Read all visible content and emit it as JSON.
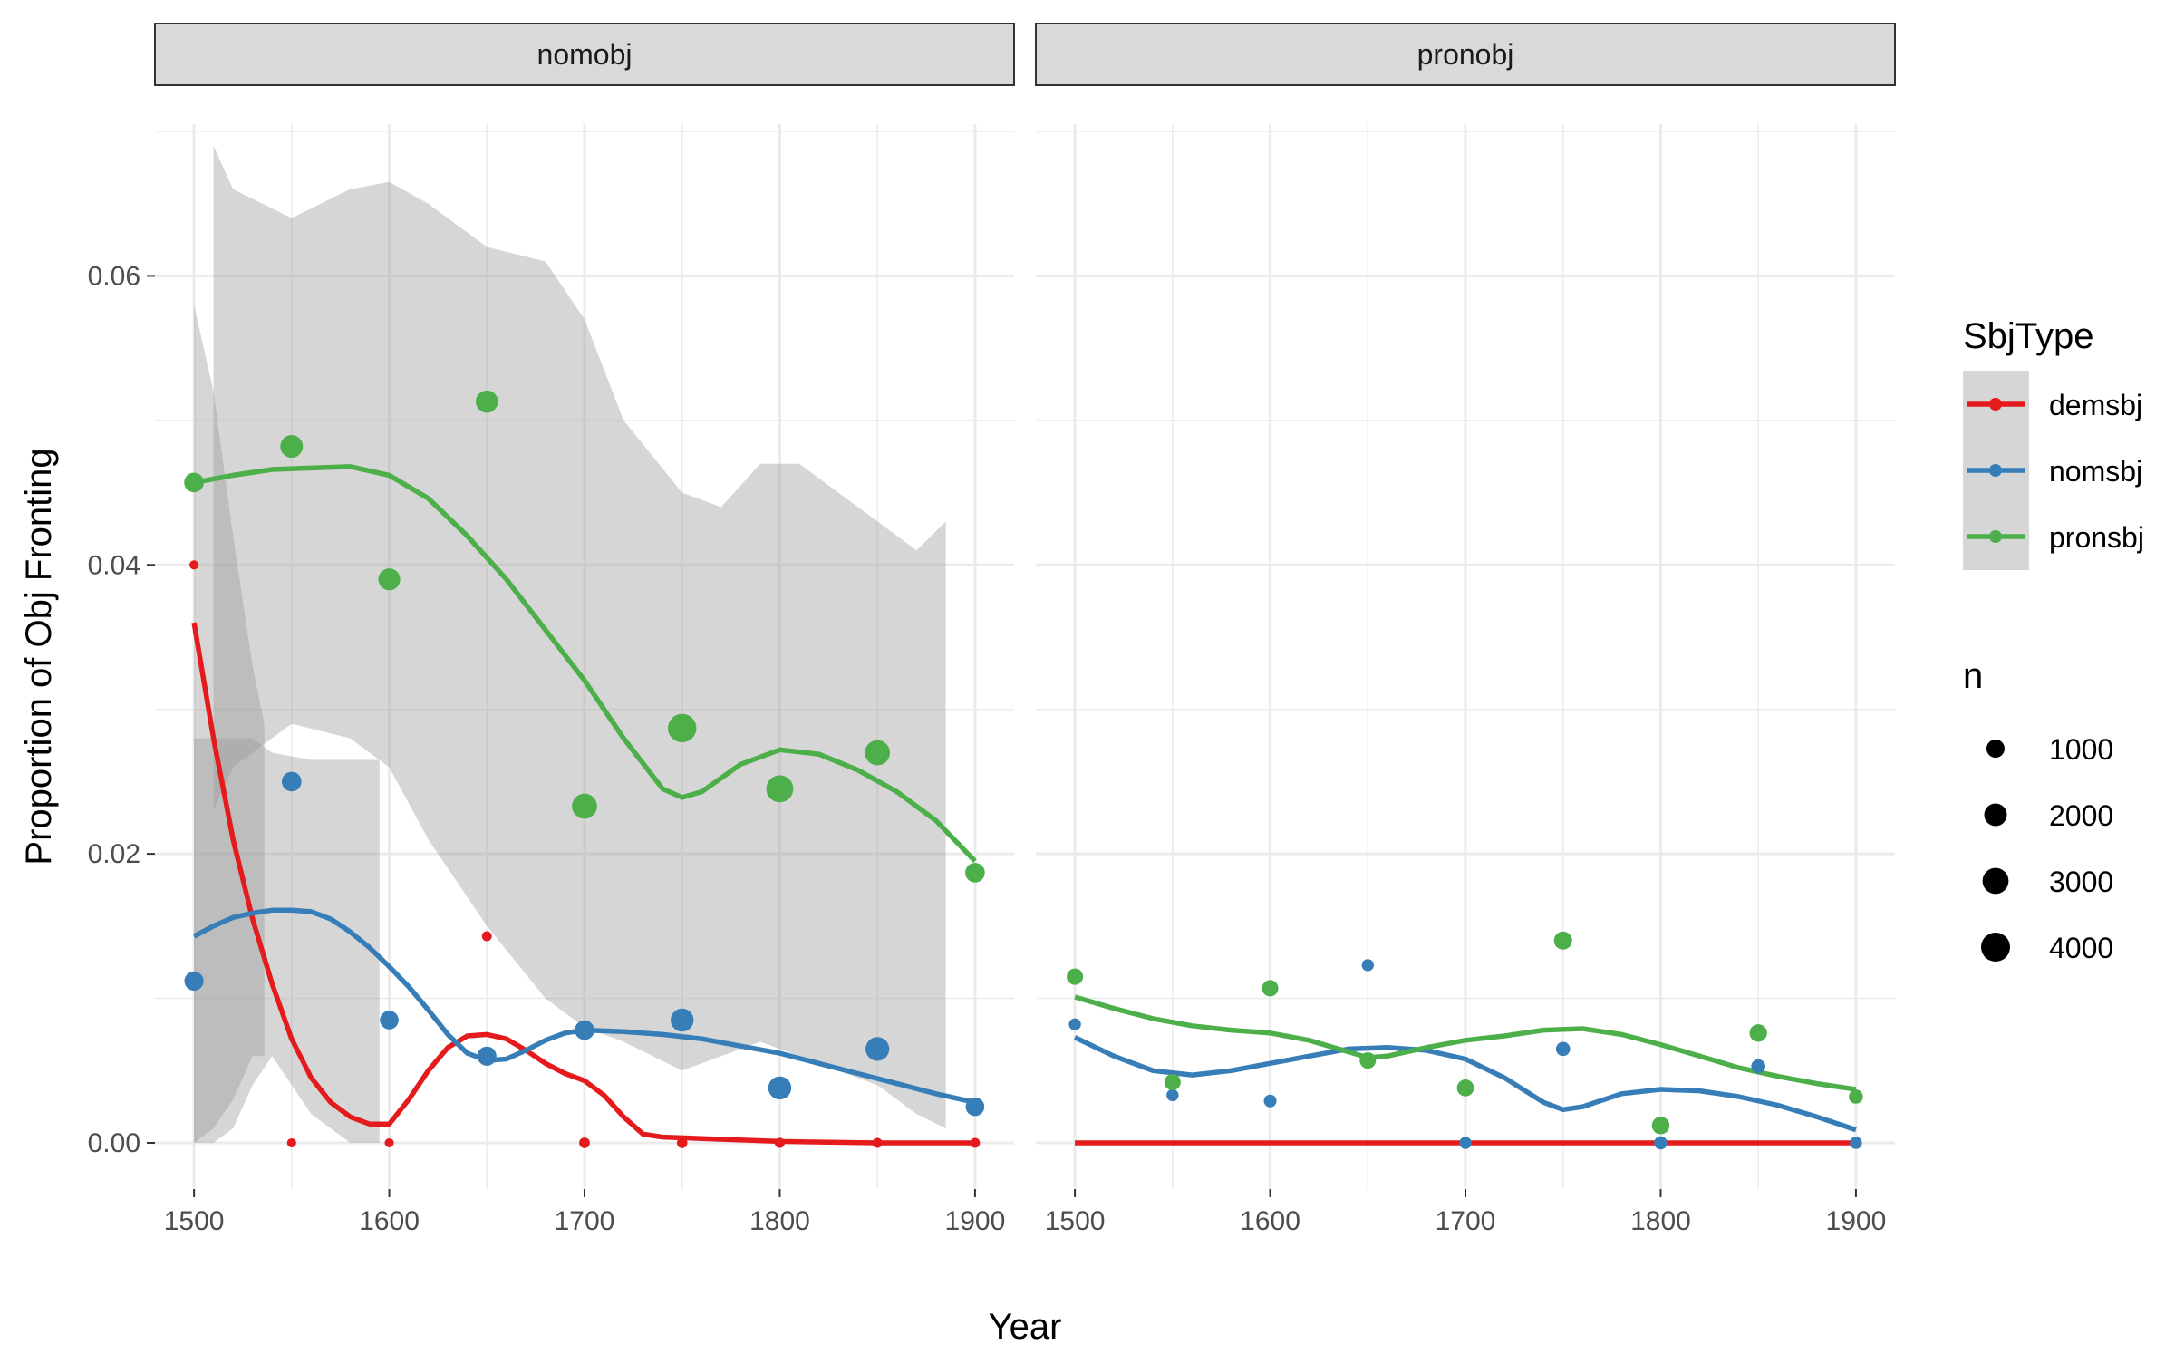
{
  "chart_data": {
    "type": "scatter",
    "xlabel": "Year",
    "ylabel": "Proportion of Obj Fronting",
    "xlim": [
      1480,
      1920
    ],
    "ylim": [
      -0.0032,
      0.0705
    ],
    "x_ticks": [
      1500,
      1600,
      1700,
      1800,
      1900
    ],
    "x_tick_labels": [
      "1500",
      "1600",
      "1700",
      "1800",
      "1900"
    ],
    "y_ticks": [
      0.0,
      0.02,
      0.04,
      0.06
    ],
    "y_tick_labels": [
      "0.00",
      "0.02",
      "0.04",
      "0.06"
    ],
    "grid": true,
    "legend_position": "right",
    "colors": {
      "demsbj": "#e41a1c",
      "nomsbj": "#377eb8",
      "pronsbj": "#4daf4a",
      "ribbon": "#999999",
      "strip_bg": "#d9d9d9",
      "grid": "#ebebeb"
    },
    "color_legend": {
      "title": "SbjType",
      "entries": [
        "demsbj",
        "nomsbj",
        "pronsbj"
      ]
    },
    "size_legend": {
      "title": "n",
      "entries": [
        1000,
        2000,
        3000,
        4000
      ],
      "labels": [
        "1000",
        "2000",
        "3000",
        "4000"
      ]
    },
    "panels": [
      {
        "label": "nomobj",
        "series": [
          {
            "name": "demsbj",
            "points": [
              {
                "x": 1500,
                "y": 0.04,
                "n": 30
              },
              {
                "x": 1550,
                "y": 0.0,
                "n": 30
              },
              {
                "x": 1600,
                "y": 0.0,
                "n": 30
              },
              {
                "x": 1650,
                "y": 0.0143,
                "n": 60
              },
              {
                "x": 1700,
                "y": 0.0,
                "n": 100
              },
              {
                "x": 1750,
                "y": 0.0,
                "n": 90
              },
              {
                "x": 1800,
                "y": 0.0,
                "n": 70
              },
              {
                "x": 1850,
                "y": 0.0,
                "n": 60
              },
              {
                "x": 1900,
                "y": 0.0,
                "n": 60
              }
            ],
            "smooth": [
              [
                1500,
                0.036
              ],
              [
                1510,
                0.028
              ],
              [
                1520,
                0.021
              ],
              [
                1530,
                0.0155
              ],
              [
                1540,
                0.011
              ],
              [
                1550,
                0.0072
              ],
              [
                1560,
                0.0045
              ],
              [
                1570,
                0.0028
              ],
              [
                1580,
                0.0018
              ],
              [
                1590,
                0.0013
              ],
              [
                1600,
                0.0013
              ],
              [
                1610,
                0.003
              ],
              [
                1620,
                0.005
              ],
              [
                1630,
                0.0066
              ],
              [
                1640,
                0.0074
              ],
              [
                1650,
                0.0075
              ],
              [
                1660,
                0.0072
              ],
              [
                1670,
                0.0064
              ],
              [
                1680,
                0.0055
              ],
              [
                1690,
                0.0048
              ],
              [
                1700,
                0.0043
              ],
              [
                1710,
                0.0033
              ],
              [
                1720,
                0.0018
              ],
              [
                1730,
                0.0006
              ],
              [
                1740,
                0.0004
              ],
              [
                1760,
                0.0003
              ],
              [
                1800,
                0.0001
              ],
              [
                1850,
                0.0
              ],
              [
                1900,
                0.0
              ]
            ],
            "ribbon": {
              "x": [
                1500,
                1510,
                1520,
                1530,
                1536
              ],
              "lower": [
                0.0,
                0.001,
                0.003,
                0.006,
                0.006
              ],
              "upper": [
                0.058,
                0.052,
                0.042,
                0.033,
                0.029
              ]
            }
          },
          {
            "name": "nomsbj",
            "points": [
              {
                "x": 1500,
                "y": 0.0112,
                "n": 1200
              },
              {
                "x": 1550,
                "y": 0.025,
                "n": 1300
              },
              {
                "x": 1600,
                "y": 0.0085,
                "n": 1100
              },
              {
                "x": 1650,
                "y": 0.006,
                "n": 1200
              },
              {
                "x": 1700,
                "y": 0.0078,
                "n": 1300
              },
              {
                "x": 1750,
                "y": 0.0085,
                "n": 2100
              },
              {
                "x": 1800,
                "y": 0.0038,
                "n": 2100
              },
              {
                "x": 1850,
                "y": 0.0065,
                "n": 2300
              },
              {
                "x": 1900,
                "y": 0.0025,
                "n": 1100
              }
            ],
            "smooth": [
              [
                1500,
                0.0143
              ],
              [
                1510,
                0.015
              ],
              [
                1520,
                0.0156
              ],
              [
                1530,
                0.0159
              ],
              [
                1540,
                0.0161
              ],
              [
                1550,
                0.0161
              ],
              [
                1560,
                0.016
              ],
              [
                1570,
                0.0155
              ],
              [
                1580,
                0.0146
              ],
              [
                1590,
                0.0135
              ],
              [
                1600,
                0.0122
              ],
              [
                1610,
                0.0108
              ],
              [
                1620,
                0.0092
              ],
              [
                1630,
                0.0075
              ],
              [
                1640,
                0.0062
              ],
              [
                1650,
                0.0057
              ],
              [
                1660,
                0.0058
              ],
              [
                1670,
                0.0064
              ],
              [
                1680,
                0.0071
              ],
              [
                1690,
                0.0076
              ],
              [
                1700,
                0.0078
              ],
              [
                1720,
                0.0077
              ],
              [
                1740,
                0.0075
              ],
              [
                1760,
                0.0072
              ],
              [
                1780,
                0.0067
              ],
              [
                1800,
                0.0062
              ],
              [
                1820,
                0.0055
              ],
              [
                1840,
                0.0048
              ],
              [
                1860,
                0.0041
              ],
              [
                1880,
                0.0034
              ],
              [
                1900,
                0.0028
              ]
            ],
            "ribbon": {
              "x": [
                1500,
                1510,
                1520,
                1530,
                1540,
                1560,
                1580,
                1595
              ],
              "lower": [
                0.0,
                0.0,
                0.001,
                0.004,
                0.006,
                0.002,
                0.0,
                0.0
              ],
              "upper": [
                0.028,
                0.028,
                0.028,
                0.028,
                0.027,
                0.0265,
                0.0265,
                0.0265
              ]
            }
          },
          {
            "name": "pronsbj",
            "points": [
              {
                "x": 1500,
                "y": 0.0457,
                "n": 1300
              },
              {
                "x": 1550,
                "y": 0.0482,
                "n": 2000
              },
              {
                "x": 1600,
                "y": 0.039,
                "n": 1800
              },
              {
                "x": 1650,
                "y": 0.0513,
                "n": 1900
              },
              {
                "x": 1700,
                "y": 0.0233,
                "n": 2700
              },
              {
                "x": 1750,
                "y": 0.0287,
                "n": 3800
              },
              {
                "x": 1800,
                "y": 0.0245,
                "n": 3300
              },
              {
                "x": 1850,
                "y": 0.027,
                "n": 2700
              },
              {
                "x": 1900,
                "y": 0.0187,
                "n": 1300
              }
            ],
            "smooth": [
              [
                1500,
                0.0457
              ],
              [
                1520,
                0.0462
              ],
              [
                1540,
                0.0466
              ],
              [
                1560,
                0.0467
              ],
              [
                1580,
                0.0468
              ],
              [
                1600,
                0.0462
              ],
              [
                1620,
                0.0446
              ],
              [
                1640,
                0.042
              ],
              [
                1660,
                0.039
              ],
              [
                1680,
                0.0355
              ],
              [
                1700,
                0.032
              ],
              [
                1720,
                0.028
              ],
              [
                1740,
                0.0245
              ],
              [
                1750,
                0.0239
              ],
              [
                1760,
                0.0243
              ],
              [
                1780,
                0.0262
              ],
              [
                1800,
                0.0272
              ],
              [
                1820,
                0.0269
              ],
              [
                1840,
                0.0258
              ],
              [
                1860,
                0.0243
              ],
              [
                1880,
                0.0223
              ],
              [
                1900,
                0.0195
              ]
            ],
            "ribbon": {
              "x": [
                1510,
                1520,
                1550,
                1580,
                1600,
                1620,
                1650,
                1680,
                1700,
                1720,
                1750,
                1770,
                1790,
                1810,
                1830,
                1850,
                1870,
                1885
              ],
              "lower": [
                0.023,
                0.026,
                0.029,
                0.028,
                0.026,
                0.021,
                0.015,
                0.01,
                0.008,
                0.007,
                0.005,
                0.006,
                0.007,
                0.006,
                0.005,
                0.004,
                0.002,
                0.001
              ],
              "upper": [
                0.069,
                0.066,
                0.064,
                0.066,
                0.0665,
                0.065,
                0.062,
                0.061,
                0.057,
                0.05,
                0.045,
                0.044,
                0.047,
                0.047,
                0.045,
                0.043,
                0.041,
                0.043
              ]
            }
          }
        ]
      },
      {
        "label": "pronobj",
        "series": [
          {
            "name": "demsbj",
            "points": [],
            "smooth": [
              [
                1500,
                0.0
              ],
              [
                1900,
                0.0
              ]
            ]
          },
          {
            "name": "nomsbj",
            "points": [
              {
                "x": 1500,
                "y": 0.0082,
                "n": 200
              },
              {
                "x": 1550,
                "y": 0.0033,
                "n": 200
              },
              {
                "x": 1600,
                "y": 0.0029,
                "n": 250
              },
              {
                "x": 1650,
                "y": 0.0123,
                "n": 200
              },
              {
                "x": 1700,
                "y": 0.0,
                "n": 200
              },
              {
                "x": 1750,
                "y": 0.0065,
                "n": 400
              },
              {
                "x": 1800,
                "y": 0.0,
                "n": 300
              },
              {
                "x": 1850,
                "y": 0.0053,
                "n": 400
              },
              {
                "x": 1900,
                "y": 0.0,
                "n": 200
              }
            ],
            "smooth": [
              [
                1500,
                0.0073
              ],
              [
                1520,
                0.006
              ],
              [
                1540,
                0.005
              ],
              [
                1560,
                0.0047
              ],
              [
                1580,
                0.005
              ],
              [
                1600,
                0.0055
              ],
              [
                1620,
                0.006
              ],
              [
                1640,
                0.0065
              ],
              [
                1660,
                0.0066
              ],
              [
                1680,
                0.0064
              ],
              [
                1700,
                0.0058
              ],
              [
                1720,
                0.0045
              ],
              [
                1740,
                0.0028
              ],
              [
                1750,
                0.0023
              ],
              [
                1760,
                0.0025
              ],
              [
                1780,
                0.0034
              ],
              [
                1800,
                0.0037
              ],
              [
                1820,
                0.0036
              ],
              [
                1840,
                0.0032
              ],
              [
                1860,
                0.0026
              ],
              [
                1880,
                0.0018
              ],
              [
                1900,
                0.0009
              ]
            ]
          },
          {
            "name": "pronsbj",
            "points": [
              {
                "x": 1500,
                "y": 0.0115,
                "n": 700
              },
              {
                "x": 1550,
                "y": 0.0042,
                "n": 700
              },
              {
                "x": 1600,
                "y": 0.0107,
                "n": 700
              },
              {
                "x": 1650,
                "y": 0.0057,
                "n": 700
              },
              {
                "x": 1700,
                "y": 0.0038,
                "n": 800
              },
              {
                "x": 1750,
                "y": 0.014,
                "n": 1000
              },
              {
                "x": 1800,
                "y": 0.0012,
                "n": 900
              },
              {
                "x": 1850,
                "y": 0.0076,
                "n": 900
              },
              {
                "x": 1900,
                "y": 0.0032,
                "n": 400
              }
            ],
            "smooth": [
              [
                1500,
                0.0101
              ],
              [
                1520,
                0.0093
              ],
              [
                1540,
                0.0086
              ],
              [
                1560,
                0.0081
              ],
              [
                1580,
                0.0078
              ],
              [
                1600,
                0.0076
              ],
              [
                1620,
                0.0071
              ],
              [
                1640,
                0.0063
              ],
              [
                1650,
                0.0059
              ],
              [
                1660,
                0.006
              ],
              [
                1680,
                0.0066
              ],
              [
                1700,
                0.0071
              ],
              [
                1720,
                0.0074
              ],
              [
                1740,
                0.0078
              ],
              [
                1760,
                0.0079
              ],
              [
                1780,
                0.0075
              ],
              [
                1800,
                0.0068
              ],
              [
                1820,
                0.006
              ],
              [
                1840,
                0.0052
              ],
              [
                1860,
                0.0046
              ],
              [
                1880,
                0.0041
              ],
              [
                1900,
                0.0037
              ]
            ]
          }
        ]
      }
    ]
  }
}
